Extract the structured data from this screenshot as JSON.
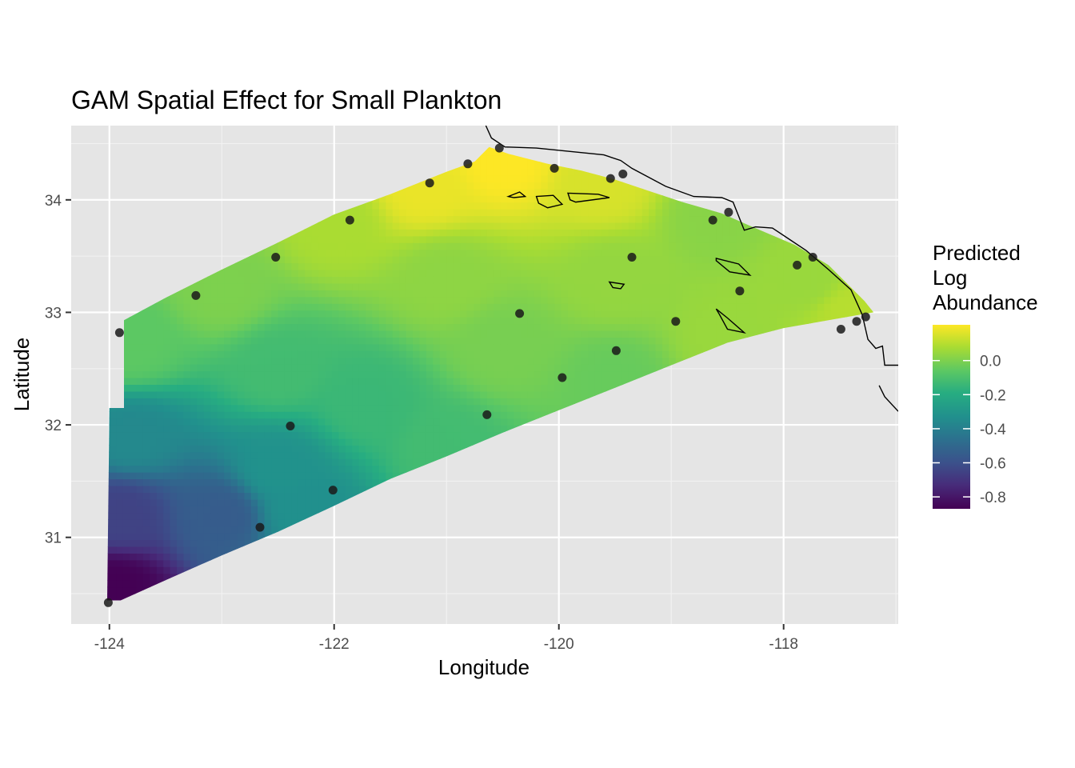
{
  "chart_data": {
    "type": "heatmap",
    "title": "GAM Spatial Effect for Small Plankton",
    "xlabel": "Longitude",
    "ylabel": "Latitude",
    "xlim": [
      -124.34,
      -116.98
    ],
    "ylim": [
      30.23,
      34.66
    ],
    "x_ticks": [
      -124,
      -122,
      -120,
      -118
    ],
    "x_tick_labels": [
      "-124",
      "-122",
      "-120",
      "-118"
    ],
    "y_ticks": [
      31,
      32,
      33,
      34
    ],
    "y_tick_labels": [
      "31",
      "32",
      "33",
      "34"
    ],
    "grid": true,
    "legend": {
      "title_lines": [
        "Predicted",
        "Log",
        "Abundance"
      ],
      "position": "right",
      "colormap": "viridis",
      "range": [
        -0.87,
        0.21
      ],
      "ticks": [
        0.0,
        -0.2,
        -0.4,
        -0.6,
        -0.8
      ],
      "tick_labels": [
        "0.0",
        "-0.2",
        "-0.4",
        "-0.6",
        "-0.8"
      ]
    },
    "colors": {
      "panel_background": "#e5e5e5",
      "grid": "#ffffff",
      "points": "#1a1a1a",
      "coastline": "#000000"
    },
    "surface": {
      "description_levels": {
        "northeast_coast": 0.1,
        "north_edge_max": 0.21,
        "southwest_corner_min": -0.87
      }
    },
    "stations": [
      {
        "lon": -124.01,
        "lat": 30.42
      },
      {
        "lon": -123.91,
        "lat": 32.82
      },
      {
        "lon": -123.23,
        "lat": 33.15
      },
      {
        "lon": -122.66,
        "lat": 31.09
      },
      {
        "lon": -122.52,
        "lat": 33.49
      },
      {
        "lon": -122.39,
        "lat": 31.99
      },
      {
        "lon": -122.01,
        "lat": 31.42
      },
      {
        "lon": -121.86,
        "lat": 33.82
      },
      {
        "lon": -121.15,
        "lat": 34.15
      },
      {
        "lon": -120.81,
        "lat": 34.32
      },
      {
        "lon": -120.64,
        "lat": 32.09
      },
      {
        "lon": -120.53,
        "lat": 34.46
      },
      {
        "lon": -120.35,
        "lat": 32.99
      },
      {
        "lon": -120.04,
        "lat": 34.28
      },
      {
        "lon": -119.97,
        "lat": 32.42
      },
      {
        "lon": -119.54,
        "lat": 34.19
      },
      {
        "lon": -119.49,
        "lat": 32.66
      },
      {
        "lon": -119.43,
        "lat": 34.23
      },
      {
        "lon": -119.35,
        "lat": 33.49
      },
      {
        "lon": -118.96,
        "lat": 32.92
      },
      {
        "lon": -118.63,
        "lat": 33.82
      },
      {
        "lon": -118.49,
        "lat": 33.89
      },
      {
        "lon": -118.39,
        "lat": 33.19
      },
      {
        "lon": -117.88,
        "lat": 33.42
      },
      {
        "lon": -117.74,
        "lat": 33.49
      },
      {
        "lon": -117.49,
        "lat": 32.85
      },
      {
        "lon": -117.35,
        "lat": 32.92
      },
      {
        "lon": -117.27,
        "lat": 32.96
      }
    ]
  }
}
